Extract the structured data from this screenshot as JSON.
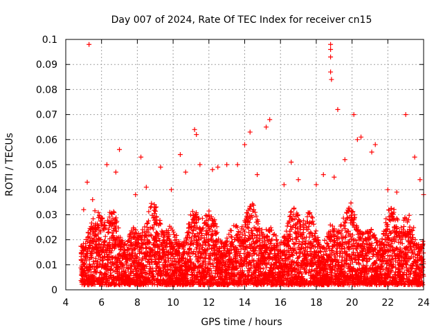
{
  "chart_data": {
    "type": "scatter",
    "title": "Day 007 of 2024, Rate Of TEC Index for receiver cn15",
    "xlabel": "GPS time / hours",
    "ylabel": "ROTI / TECUs",
    "xlim": [
      4,
      24
    ],
    "ylim": [
      0,
      0.1
    ],
    "xticks": [
      4,
      6,
      8,
      10,
      12,
      14,
      16,
      18,
      20,
      22,
      24
    ],
    "xtick_labels": [
      "4",
      "6",
      "8",
      "10",
      "12",
      "14",
      "16",
      "18",
      "20",
      "22",
      "24"
    ],
    "yticks": [
      0,
      0.01,
      0.02,
      0.03,
      0.04,
      0.05,
      0.06,
      0.07,
      0.08,
      0.09,
      0.1
    ],
    "ytick_labels": [
      "0",
      "0.01",
      "0.02",
      "0.03",
      "0.04",
      "0.05",
      "0.06",
      "0.07",
      "0.08",
      "0.09",
      "0.1"
    ],
    "grid": true,
    "marker": "+",
    "marker_color": "#ff0000",
    "series": [
      {
        "name": "ROTI",
        "x": [
          5.3,
          18.8,
          18.8,
          18.8,
          18.8,
          18.85,
          15.4,
          11.2,
          20.1,
          23.0,
          7.0,
          8.2,
          14.3,
          19.2,
          20.5,
          5.2,
          6.3,
          9.3,
          10.4,
          12.5,
          13.0,
          16.6,
          21.3,
          23.5,
          14.0,
          15.2,
          11.3,
          11.5,
          20.3,
          21.1,
          19.0,
          18.0,
          17.0,
          9.9,
          10.7,
          13.6,
          22.5,
          24.0,
          8.5,
          6.8,
          7.9,
          16.2,
          12.2,
          14.7,
          19.6,
          22.0,
          5.5,
          5.0,
          23.8,
          18.4
        ],
        "y": [
          0.098,
          0.098,
          0.096,
          0.093,
          0.087,
          0.084,
          0.068,
          0.064,
          0.07,
          0.07,
          0.056,
          0.053,
          0.063,
          0.072,
          0.061,
          0.043,
          0.05,
          0.049,
          0.054,
          0.049,
          0.05,
          0.051,
          0.058,
          0.053,
          0.058,
          0.065,
          0.062,
          0.05,
          0.06,
          0.055,
          0.045,
          0.042,
          0.044,
          0.04,
          0.047,
          0.05,
          0.039,
          0.038,
          0.041,
          0.047,
          0.038,
          0.042,
          0.048,
          0.046,
          0.052,
          0.04,
          0.036,
          0.032,
          0.044,
          0.046
        ]
      }
    ],
    "dense_band": {
      "x_start": 4.85,
      "x_end": 24.0,
      "y_low": 0.002,
      "y_high_typical": 0.03
    }
  }
}
